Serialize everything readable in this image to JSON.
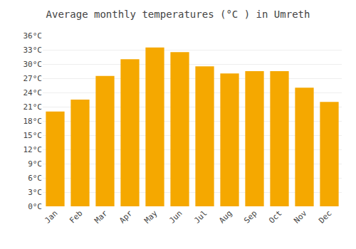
{
  "chart_data": {
    "type": "bar",
    "title": "Average monthly temperatures (°C ) in Umreth",
    "categories": [
      "Jan",
      "Feb",
      "Mar",
      "Apr",
      "May",
      "Jun",
      "Jul",
      "Aug",
      "Sep",
      "Oct",
      "Nov",
      "Dec"
    ],
    "values": [
      20.0,
      22.5,
      27.5,
      31.0,
      33.5,
      32.5,
      29.5,
      28.0,
      28.5,
      28.5,
      25.0,
      22.0
    ],
    "color": "#F5A800",
    "ylim": [
      0,
      36
    ],
    "yticks": [
      {
        "value": 0,
        "label": "0°C"
      },
      {
        "value": 3,
        "label": "3°C"
      },
      {
        "value": 6,
        "label": "6°C"
      },
      {
        "value": 9,
        "label": "9°C"
      },
      {
        "value": 12,
        "label": "12°C"
      },
      {
        "value": 15,
        "label": "15°C"
      },
      {
        "value": 18,
        "label": "18°C"
      },
      {
        "value": 21,
        "label": "21°C"
      },
      {
        "value": 24,
        "label": "24°C"
      },
      {
        "value": 27,
        "label": "27°C"
      },
      {
        "value": 30,
        "label": "30°C"
      },
      {
        "value": 33,
        "label": "33°C"
      },
      {
        "value": 36,
        "label": "36°C"
      }
    ],
    "grid": true
  }
}
